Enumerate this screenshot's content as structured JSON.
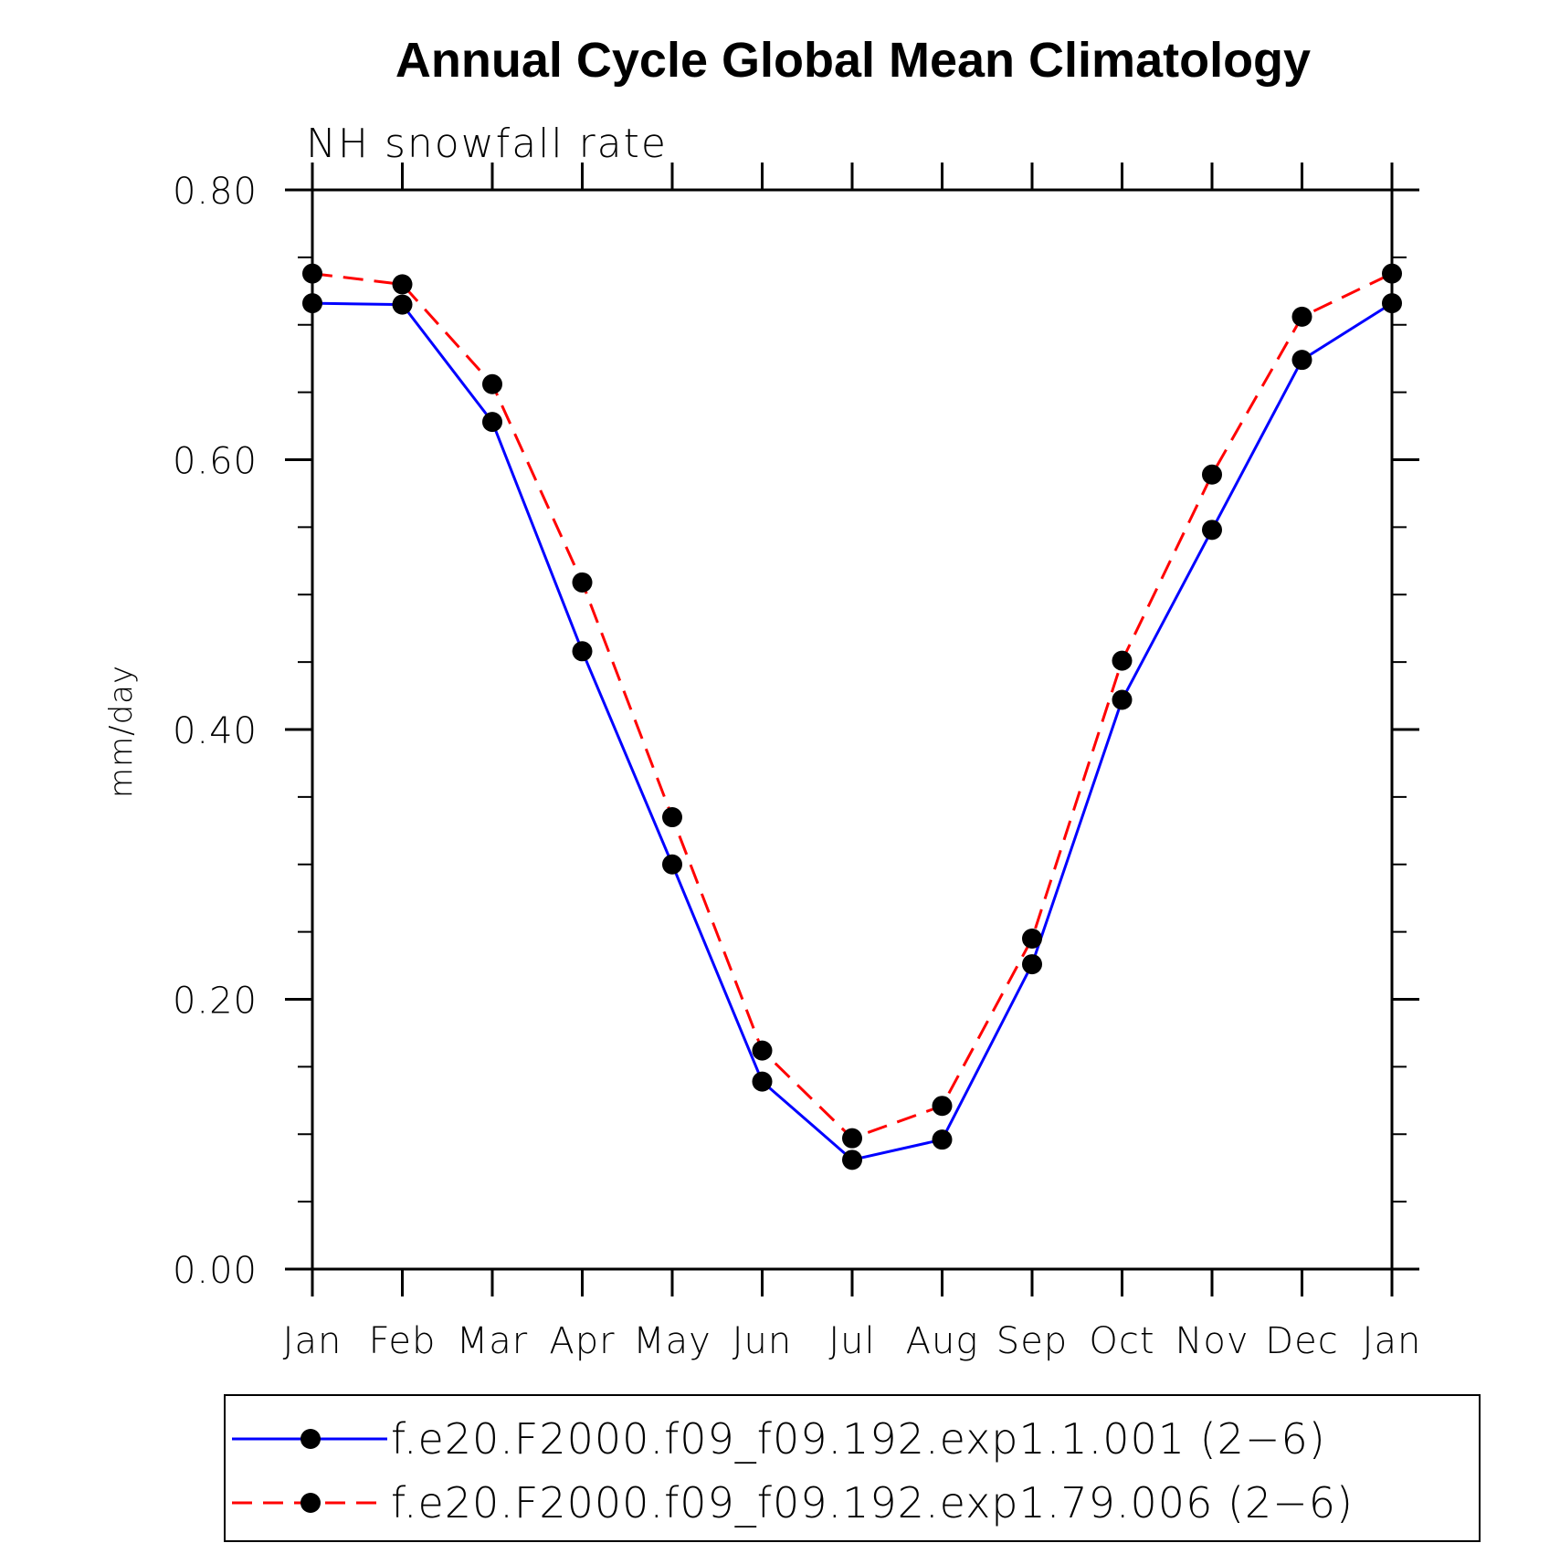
{
  "chart_data": {
    "type": "line",
    "title": "Annual Cycle Global Mean Climatology",
    "subtitle": "NH snowfall rate",
    "xlabel": "",
    "ylabel": "mm/day",
    "categories": [
      "Jan",
      "Feb",
      "Mar",
      "Apr",
      "May",
      "Jun",
      "Jul",
      "Aug",
      "Sep",
      "Oct",
      "Nov",
      "Dec",
      "Jan"
    ],
    "ylim": [
      0.0,
      0.8
    ],
    "yticks": [
      "0.00",
      "0.20",
      "0.40",
      "0.60",
      "0.80"
    ],
    "grid": false,
    "legend_position": "bottom",
    "series": [
      {
        "name": "f.e20.F2000.f09_f09.192.exp1.1.001 (2−6)",
        "color": "#0000ff",
        "line_style": "solid",
        "marker": "filled-circle",
        "values": [
          0.716,
          0.715,
          0.628,
          0.458,
          0.3,
          0.139,
          0.081,
          0.096,
          0.226,
          0.422,
          0.548,
          0.674,
          0.716
        ]
      },
      {
        "name": "f.e20.F2000.f09_f09.192.exp1.79.006 (2−6)",
        "color": "#ff0000",
        "line_style": "dashed",
        "marker": "filled-circle",
        "values": [
          0.738,
          0.73,
          0.656,
          0.509,
          0.335,
          0.162,
          0.097,
          0.121,
          0.245,
          0.451,
          0.589,
          0.706,
          0.738
        ]
      }
    ]
  }
}
